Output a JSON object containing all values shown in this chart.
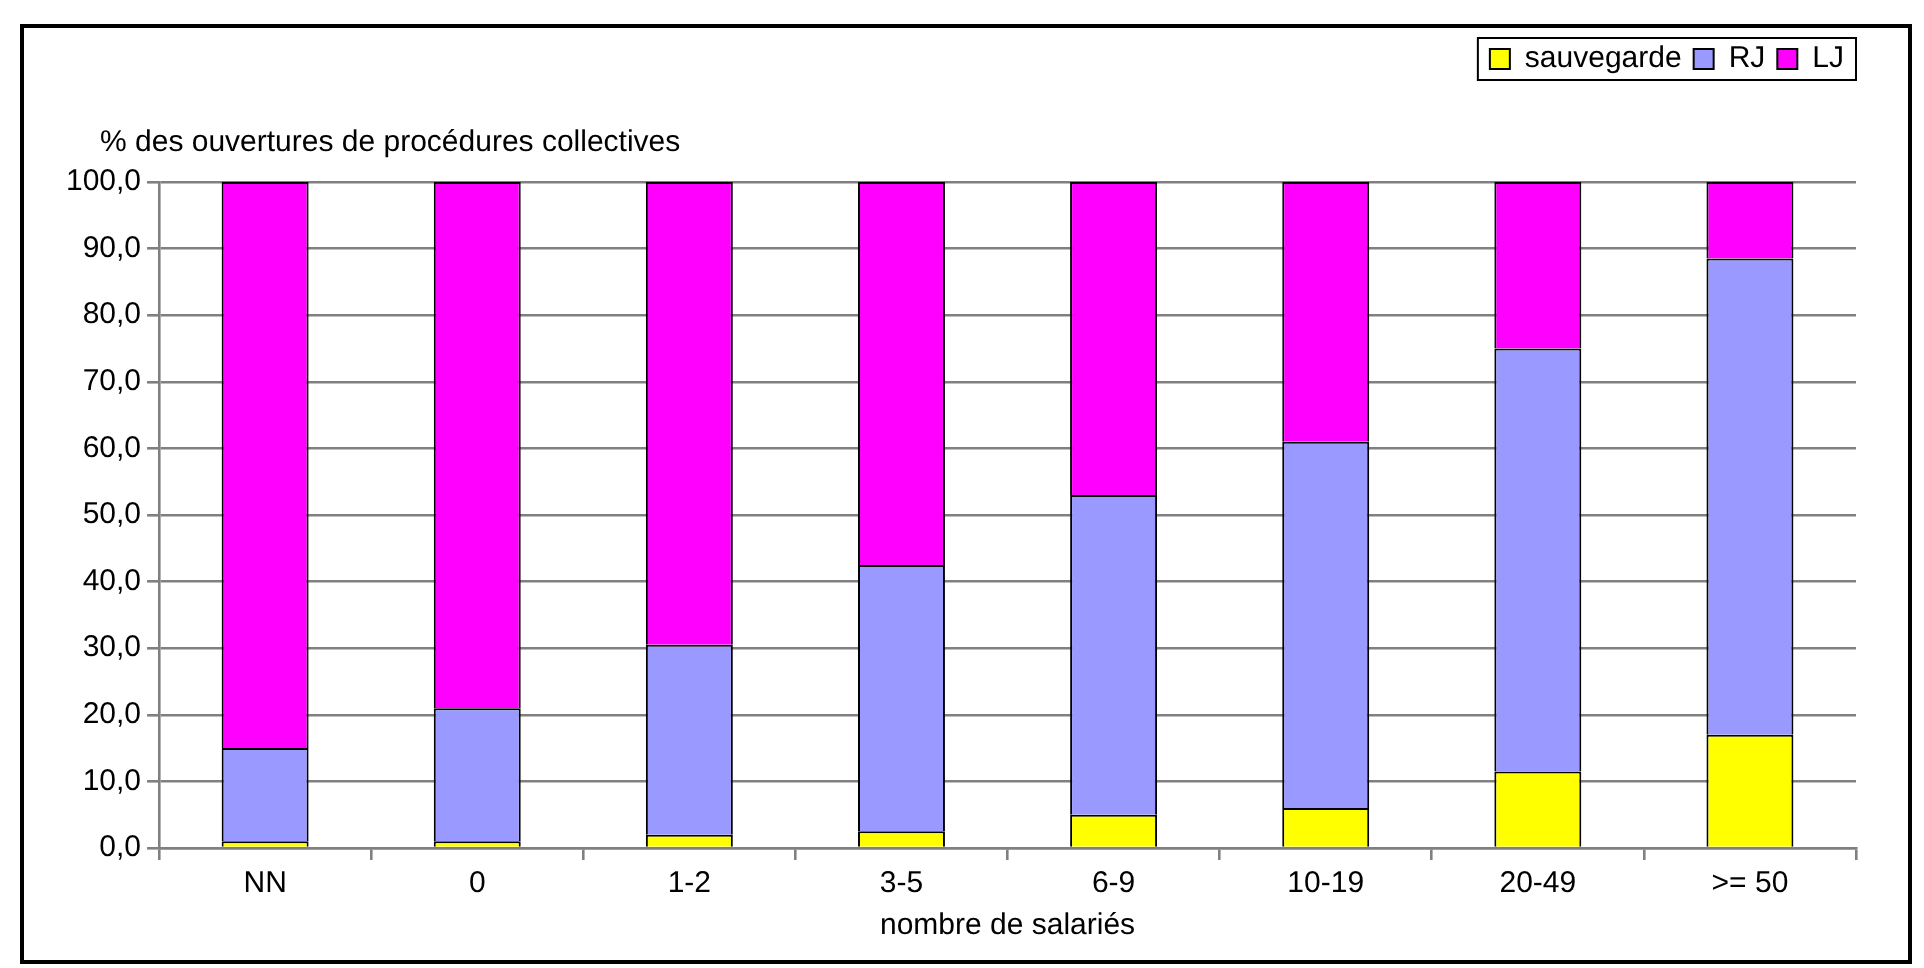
{
  "chart_data": {
    "type": "bar",
    "stacked": true,
    "ylabel": "% des ouvertures de procédures collectives",
    "xlabel": "nombre de salariés",
    "categories": [
      "NN",
      "0",
      "1-2",
      "3-5",
      "6-9",
      "10-19",
      "20-49",
      ">= 50"
    ],
    "series": [
      {
        "name": "sauvegarde",
        "color": "#ffff00",
        "values": [
          1,
          1,
          2,
          2.5,
          5,
          6,
          11.5,
          17
        ]
      },
      {
        "name": "RJ",
        "color": "#9999ff",
        "values": [
          14,
          20,
          28.5,
          40,
          48,
          55,
          63.5,
          71.5
        ]
      },
      {
        "name": "LJ",
        "color": "#ff00ff",
        "values": [
          85,
          79,
          69.5,
          57.5,
          47,
          39,
          25,
          11.5
        ]
      }
    ],
    "ylim": [
      0,
      100
    ],
    "yticks": [
      {
        "value": 0,
        "label": "0,0"
      },
      {
        "value": 10,
        "label": "10,0"
      },
      {
        "value": 20,
        "label": "20,0"
      },
      {
        "value": 30,
        "label": "30,0"
      },
      {
        "value": 40,
        "label": "40,0"
      },
      {
        "value": 50,
        "label": "50,0"
      },
      {
        "value": 60,
        "label": "60,0"
      },
      {
        "value": 70,
        "label": "70,0"
      },
      {
        "value": 80,
        "label": "80,0"
      },
      {
        "value": 90,
        "label": "90,0"
      },
      {
        "value": 100,
        "label": "100,0"
      }
    ],
    "grid": "y",
    "legend": "top right"
  }
}
